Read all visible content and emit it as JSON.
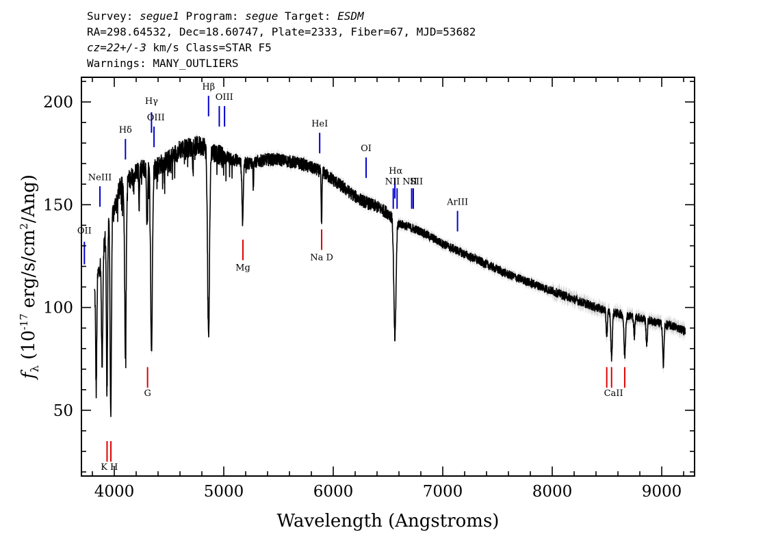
{
  "header": {
    "line1": "Survey: segue1 Program: segue Target: ESDM",
    "line2": "RA=298.64532, Dec=18.60747, Plate=2333, Fiber=67, MJD=53682",
    "line3": "cz=22+/-3 km/s Class=STAR F5",
    "line4": "Warnings: MANY_OUTLIERS"
  },
  "colors": {
    "spectrum": "#000000",
    "error_band": "#aaaaaa",
    "emission_lines": "#0000cc",
    "absorption_lines": "#dd0000",
    "axis": "#000000"
  },
  "chart_data": {
    "type": "line",
    "xlabel": "Wavelength (Angstroms)",
    "ylabel": "f_λ (10^-17 erg/s/cm^2/Ang)",
    "xlim": [
      3700,
      9300
    ],
    "ylim": [
      18,
      212
    ],
    "xticks": [
      4000,
      5000,
      6000,
      7000,
      8000,
      9000
    ],
    "yticks": [
      50,
      100,
      150,
      200
    ],
    "grid": false,
    "continuum": [
      {
        "x": 3820,
        "y": 108
      },
      {
        "x": 3860,
        "y": 118
      },
      {
        "x": 3900,
        "y": 130
      },
      {
        "x": 3950,
        "y": 140
      },
      {
        "x": 4000,
        "y": 148
      },
      {
        "x": 4050,
        "y": 158
      },
      {
        "x": 4100,
        "y": 160
      },
      {
        "x": 4200,
        "y": 166
      },
      {
        "x": 4300,
        "y": 168
      },
      {
        "x": 4400,
        "y": 169
      },
      {
        "x": 4500,
        "y": 172
      },
      {
        "x": 4600,
        "y": 177
      },
      {
        "x": 4700,
        "y": 178
      },
      {
        "x": 4800,
        "y": 179
      },
      {
        "x": 4900,
        "y": 176
      },
      {
        "x": 5000,
        "y": 173
      },
      {
        "x": 5100,
        "y": 172
      },
      {
        "x": 5200,
        "y": 170
      },
      {
        "x": 5300,
        "y": 171
      },
      {
        "x": 5400,
        "y": 172
      },
      {
        "x": 5500,
        "y": 172
      },
      {
        "x": 5600,
        "y": 171
      },
      {
        "x": 5700,
        "y": 170
      },
      {
        "x": 5800,
        "y": 168
      },
      {
        "x": 5900,
        "y": 166
      },
      {
        "x": 6000,
        "y": 162
      },
      {
        "x": 6100,
        "y": 158
      },
      {
        "x": 6200,
        "y": 154
      },
      {
        "x": 6300,
        "y": 151
      },
      {
        "x": 6400,
        "y": 149
      },
      {
        "x": 6500,
        "y": 146
      },
      {
        "x": 6600,
        "y": 141
      },
      {
        "x": 6700,
        "y": 139
      },
      {
        "x": 6800,
        "y": 137
      },
      {
        "x": 6900,
        "y": 134
      },
      {
        "x": 7000,
        "y": 131
      },
      {
        "x": 7200,
        "y": 126
      },
      {
        "x": 7400,
        "y": 121
      },
      {
        "x": 7600,
        "y": 116
      },
      {
        "x": 7800,
        "y": 112
      },
      {
        "x": 8000,
        "y": 108
      },
      {
        "x": 8200,
        "y": 104
      },
      {
        "x": 8400,
        "y": 100
      },
      {
        "x": 8600,
        "y": 97
      },
      {
        "x": 8800,
        "y": 95
      },
      {
        "x": 9000,
        "y": 92
      },
      {
        "x": 9100,
        "y": 91
      },
      {
        "x": 9200,
        "y": 89
      }
    ],
    "absorption_features": [
      {
        "x": 3835,
        "depth": 52,
        "width": 5
      },
      {
        "x": 3889,
        "depth": 55,
        "width": 6
      },
      {
        "x": 3933,
        "depth": 80,
        "width": 5
      },
      {
        "x": 3968,
        "depth": 95,
        "width": 6
      },
      {
        "x": 4102,
        "depth": 82,
        "width": 7
      },
      {
        "x": 4227,
        "depth": 18,
        "width": 3
      },
      {
        "x": 4300,
        "depth": 30,
        "width": 5
      },
      {
        "x": 4340,
        "depth": 90,
        "width": 8
      },
      {
        "x": 4861,
        "depth": 92,
        "width": 9
      },
      {
        "x": 5172,
        "depth": 28,
        "width": 6
      },
      {
        "x": 5270,
        "depth": 12,
        "width": 3
      },
      {
        "x": 5893,
        "depth": 26,
        "width": 4
      },
      {
        "x": 6563,
        "depth": 58,
        "width": 10
      },
      {
        "x": 8498,
        "depth": 12,
        "width": 6
      },
      {
        "x": 8542,
        "depth": 22,
        "width": 7
      },
      {
        "x": 8662,
        "depth": 20,
        "width": 7
      },
      {
        "x": 8750,
        "depth": 10,
        "width": 5
      },
      {
        "x": 8863,
        "depth": 12,
        "width": 6
      },
      {
        "x": 9015,
        "depth": 20,
        "width": 6
      }
    ],
    "emission_lines": [
      {
        "label": "OII",
        "x": 3727,
        "y_top": 132,
        "y_bottom": 121
      },
      {
        "label": "NeIII",
        "x": 3869,
        "y_top": 159,
        "y_bottom": 149
      },
      {
        "label": "Hδ",
        "x": 4102,
        "y_top": 182,
        "y_bottom": 172
      },
      {
        "label": "Hγ",
        "x": 4340,
        "y_top": 195,
        "y_bottom": 185
      },
      {
        "label": "OIII",
        "x": 4363,
        "y_top": 188,
        "y_bottom": 178
      },
      {
        "label": "Hβ",
        "x": 4861,
        "y_top": 203,
        "y_bottom": 193
      },
      {
        "label": "OIII",
        "x": 4959,
        "y_top": 198,
        "y_bottom": 188
      },
      {
        "label": "OIII",
        "x": 5007,
        "y_top": 198,
        "y_bottom": 188
      },
      {
        "label": "HeI",
        "x": 5876,
        "y_top": 185,
        "y_bottom": 175
      },
      {
        "label": "OI",
        "x": 6300,
        "y_top": 173,
        "y_bottom": 163
      },
      {
        "label": "NII",
        "x": 6548,
        "y_top": 158,
        "y_bottom": 148
      },
      {
        "label": "Hα",
        "x": 6563,
        "y_top": 163,
        "y_bottom": 153
      },
      {
        "label": "NII",
        "x": 6583,
        "y_top": 158,
        "y_bottom": 148
      },
      {
        "label": "SII",
        "x": 6716,
        "y_top": 158,
        "y_bottom": 148
      },
      {
        "label": "SII",
        "x": 6731,
        "y_top": 158,
        "y_bottom": 148
      },
      {
        "label": "ArIII",
        "x": 7135,
        "y_top": 147,
        "y_bottom": 137
      }
    ],
    "absorption_lines": [
      {
        "label": "K",
        "x": 3934,
        "y_top": 35,
        "y_bottom": 25
      },
      {
        "label": "H",
        "x": 3969,
        "y_top": 35,
        "y_bottom": 25
      },
      {
        "label": "G",
        "x": 4304,
        "y_top": 71,
        "y_bottom": 61
      },
      {
        "label": "Mg",
        "x": 5175,
        "y_top": 133,
        "y_bottom": 123
      },
      {
        "label": "Na D",
        "x": 5894,
        "y_top": 138,
        "y_bottom": 128
      },
      {
        "label": "CaII",
        "x": 8498,
        "y_top": 71,
        "y_bottom": 61
      },
      {
        "label": "CaII",
        "x": 8542,
        "y_top": 71,
        "y_bottom": 61
      },
      {
        "label": "CaII",
        "x": 8662,
        "y_top": 71,
        "y_bottom": 61
      }
    ],
    "line_label_text": {
      "OII": "OII",
      "NeIII": "NeIII",
      "Hdelta": "Hδ",
      "Hgamma": "Hγ",
      "OIII_a": "OIII",
      "Hbeta": "Hβ",
      "OIII_b": "OIII",
      "HeI": "HeI",
      "OI": "OI",
      "NII_a": "NII",
      "Halpha": "Hα",
      "NII_b": "NII",
      "SII": "SII",
      "ArIII": "ArIII",
      "KH": "K H",
      "G": "G",
      "Mg": "Mg",
      "NaD": "Na D",
      "CaII": "CaII"
    }
  }
}
